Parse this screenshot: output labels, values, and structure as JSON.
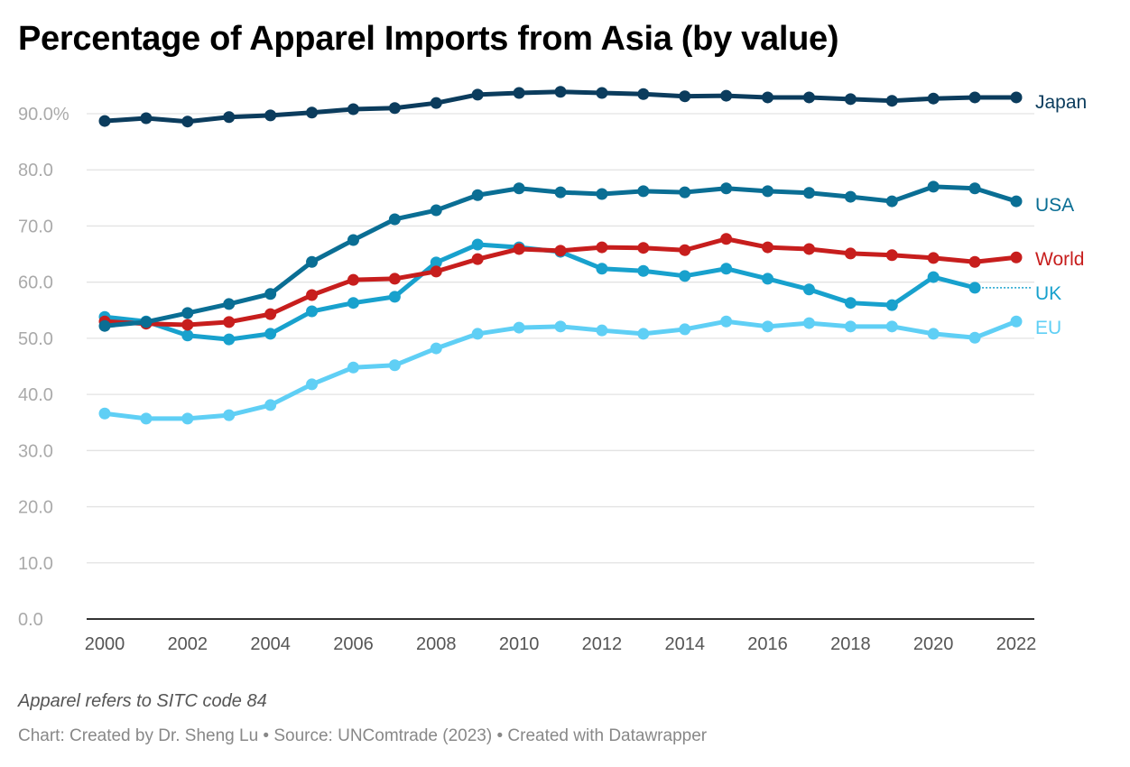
{
  "chart_data": {
    "type": "line",
    "title": "Percentage of Apparel Imports from Asia (by value)",
    "note": "Apparel refers to SITC code 84",
    "source": "Chart: Created by Dr. Sheng Lu • Source: UNComtrade (2023) • Created with Datawrapper",
    "x": [
      2000,
      2001,
      2002,
      2003,
      2004,
      2005,
      2006,
      2007,
      2008,
      2009,
      2010,
      2011,
      2012,
      2013,
      2014,
      2015,
      2016,
      2017,
      2018,
      2019,
      2020,
      2021,
      2022
    ],
    "x_tick_labels": [
      "2000",
      "2002",
      "2004",
      "2006",
      "2008",
      "2010",
      "2012",
      "2014",
      "2016",
      "2018",
      "2020",
      "2022"
    ],
    "y_tick_labels": [
      "0.0",
      "10.0",
      "20.0",
      "30.0",
      "40.0",
      "50.0",
      "60.0",
      "70.0",
      "80.0",
      "90.0%"
    ],
    "y_ticks": [
      0,
      10,
      20,
      30,
      40,
      50,
      60,
      70,
      80,
      90
    ],
    "ylim": [
      0,
      95
    ],
    "xlim": [
      2000,
      2022
    ],
    "grid": true,
    "legend": "inline-right",
    "series": [
      {
        "name": "Japan",
        "color": "#0b3c5d",
        "values": [
          88.7,
          89.2,
          88.6,
          89.4,
          89.7,
          90.2,
          90.8,
          91.0,
          91.9,
          93.4,
          93.7,
          93.9,
          93.7,
          93.5,
          93.1,
          93.2,
          92.9,
          92.9,
          92.6,
          92.3,
          92.7,
          92.9,
          92.9
        ]
      },
      {
        "name": "USA",
        "color": "#0a6e94",
        "values": [
          52.2,
          52.9,
          54.5,
          56.1,
          57.9,
          63.6,
          67.5,
          71.2,
          72.8,
          75.5,
          76.7,
          76.0,
          75.7,
          76.2,
          76.0,
          76.7,
          76.2,
          75.9,
          75.2,
          74.4,
          77.0,
          76.7,
          74.4
        ]
      },
      {
        "name": "World",
        "color": "#c71e1d",
        "values": [
          53.0,
          52.6,
          52.4,
          52.9,
          54.3,
          57.7,
          60.4,
          60.6,
          61.9,
          64.1,
          65.9,
          65.6,
          66.2,
          66.1,
          65.7,
          67.7,
          66.2,
          65.9,
          65.1,
          64.8,
          64.3,
          63.6,
          64.4
        ]
      },
      {
        "name": "UK",
        "color": "#18a1cd",
        "values": [
          53.8,
          53.0,
          50.5,
          49.8,
          50.8,
          54.8,
          56.3,
          57.4,
          63.5,
          66.7,
          66.2,
          65.4,
          62.4,
          62.0,
          61.1,
          62.4,
          60.6,
          58.7,
          56.3,
          55.9,
          60.9,
          59.0,
          null
        ]
      },
      {
        "name": "EU",
        "color": "#5fcff5",
        "values": [
          36.6,
          35.7,
          35.7,
          36.3,
          38.1,
          41.8,
          44.8,
          45.2,
          48.2,
          50.8,
          51.9,
          52.1,
          51.4,
          50.8,
          51.6,
          53.0,
          52.1,
          52.7,
          52.1,
          52.1,
          50.8,
          50.1,
          53.0
        ]
      }
    ]
  }
}
